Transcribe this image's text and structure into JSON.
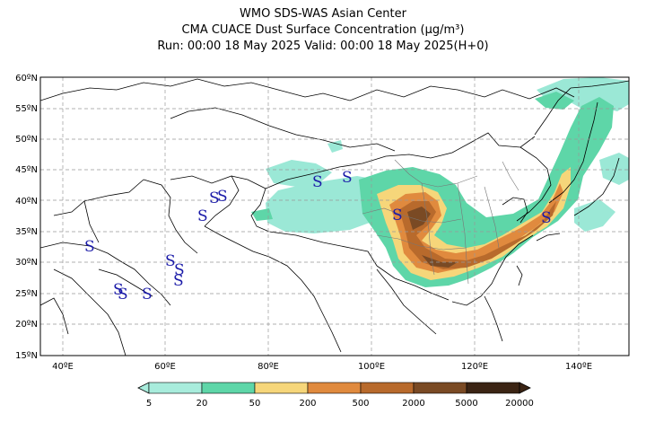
{
  "header": {
    "line1": "WMO SDS-WAS Asian Center",
    "line2": "CMA CUACE Dust Surface Concentration (μg/m³)",
    "line3": "Run: 00:00 18 May 2025    Valid: 00:00 18 May 2025(H+0)"
  },
  "map": {
    "lat_labels": [
      "60ºN",
      "55ºN",
      "50ºN",
      "45ºN",
      "40ºN",
      "35ºN",
      "30ºN",
      "25ºN",
      "20ºN",
      "15ºN"
    ],
    "lon_labels": [
      "40ºE",
      "60ºE",
      "80ºE",
      "100ºE",
      "120ºE",
      "140ºE"
    ],
    "storm_symbol": "S",
    "colors": {
      "c5_20": "#9be8d6",
      "c20_50": "#5ed6a8",
      "c50_200": "#f6d67a",
      "c200_500": "#e08a3e",
      "c500_2000": "#b86a2c",
      "c2000_5000": "#7a4a24",
      "c5000_20000": "#3b2414"
    }
  },
  "colorbar": {
    "labels": [
      "5",
      "20",
      "50",
      "200",
      "500",
      "2000",
      "5000",
      "20000"
    ],
    "colors": [
      "#a8ecdc",
      "#5ed6a8",
      "#f6d67a",
      "#e08a3e",
      "#b86a2c",
      "#7a4a24",
      "#3b2414"
    ]
  }
}
